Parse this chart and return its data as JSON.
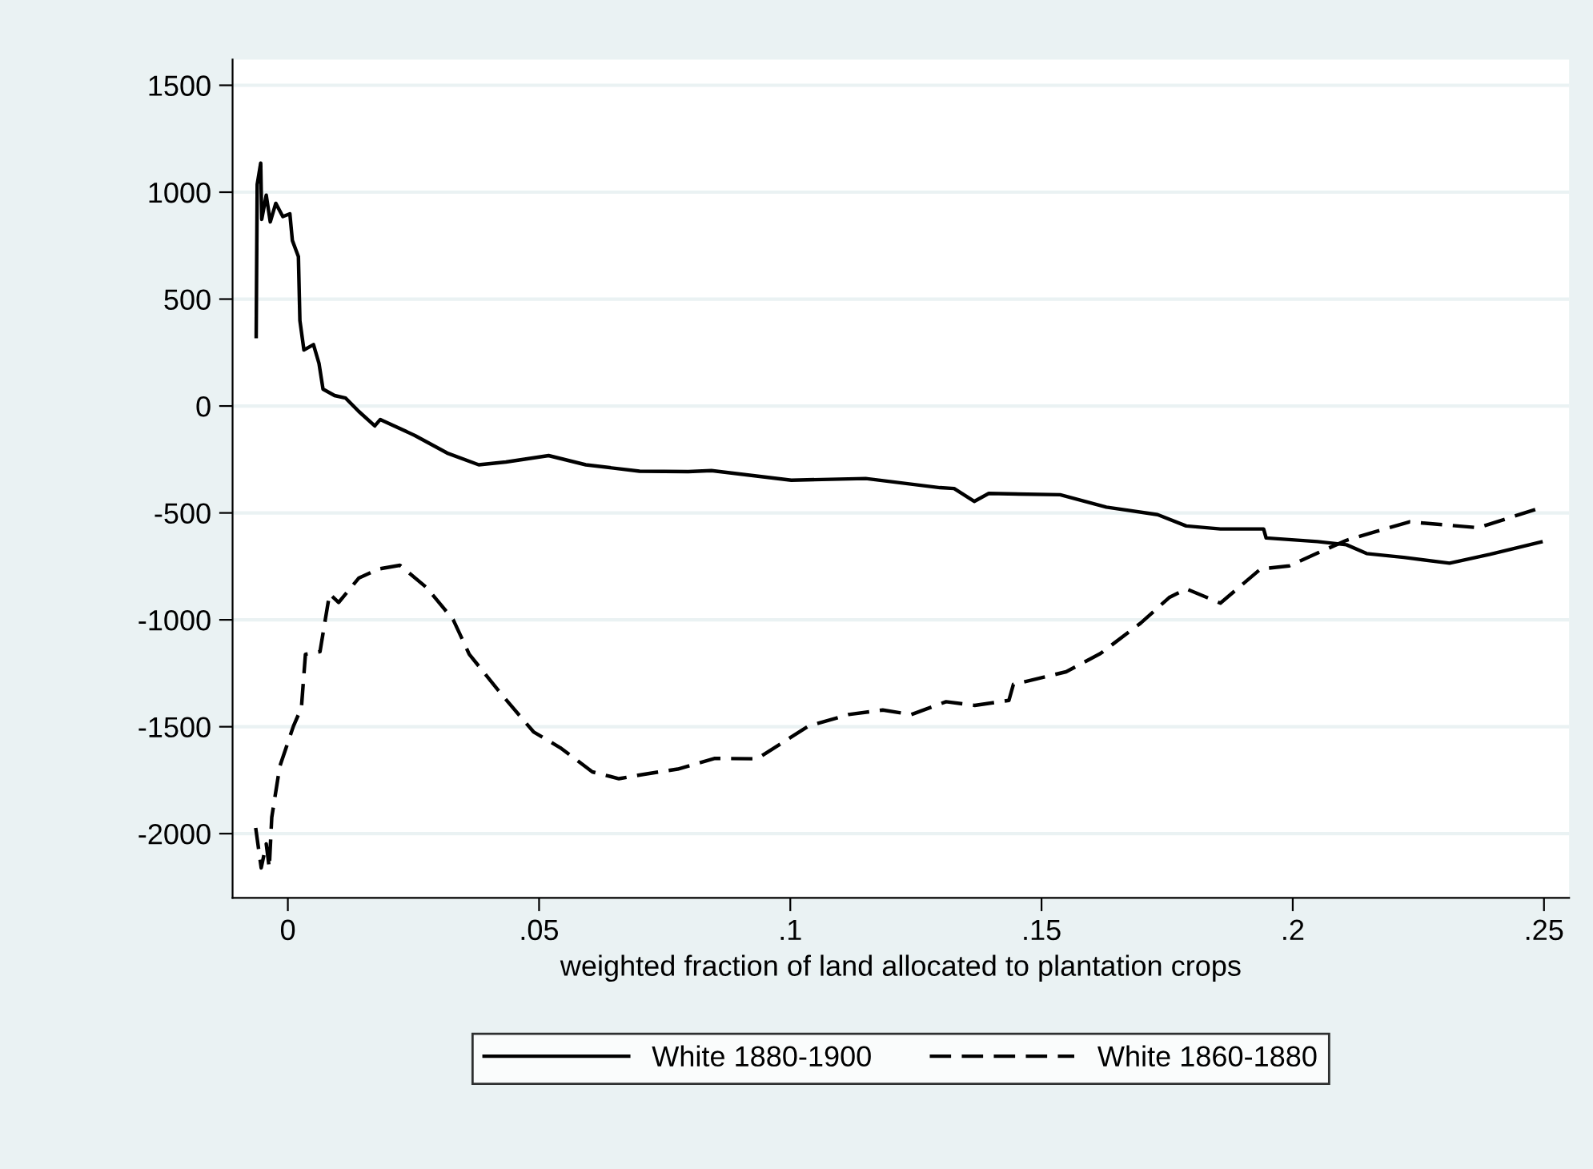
{
  "chart_data": {
    "type": "line",
    "xlabel": "weighted fraction of land allocated to plantation crops",
    "xlim": [
      -0.011,
      0.255
    ],
    "xticks": [
      {
        "value": 0,
        "label": "0"
      },
      {
        "value": 0.05,
        "label": ".05"
      },
      {
        "value": 0.1,
        "label": ".1"
      },
      {
        "value": 0.15,
        "label": ".15"
      },
      {
        "value": 0.2,
        "label": ".2"
      },
      {
        "value": 0.25,
        "label": ".25"
      }
    ],
    "ylim": [
      -2300,
      1620
    ],
    "yticks": [
      -2000,
      -1500,
      -1000,
      -500,
      0,
      500,
      1000,
      1500
    ],
    "grid": "y",
    "legend": "bottom",
    "series": [
      {
        "name": "White 1880-1900",
        "color": "#000000",
        "line_style": "solid",
        "x": [
          -0.0063,
          -0.0061,
          -0.0054,
          -0.0052,
          -0.0043,
          -0.0035,
          -0.0024,
          -0.001,
          0.0004,
          0.0009,
          0.0021,
          0.0024,
          0.0032,
          0.0051,
          0.0062,
          0.007,
          0.0093,
          0.0115,
          0.0141,
          0.0173,
          0.0184,
          0.0253,
          0.0317,
          0.038,
          0.0434,
          0.0519,
          0.0593,
          0.07,
          0.0797,
          0.0843,
          0.1002,
          0.115,
          0.1298,
          0.1326,
          0.1366,
          0.1395,
          0.1537,
          0.1629,
          0.1731,
          0.1788,
          0.1856,
          0.1942,
          0.1947,
          0.2049,
          0.2107,
          0.2147,
          0.2221,
          0.2312,
          0.2392,
          0.2494
        ],
        "values": [
          325,
          1036,
          1136,
          873,
          986,
          861,
          948,
          886,
          899,
          774,
          699,
          399,
          262,
          287,
          199,
          79,
          49,
          37,
          -25,
          -93,
          -63,
          -138,
          -220,
          -275,
          -262,
          -232,
          -275,
          -305,
          -307,
          -302,
          -347,
          -339,
          -382,
          -386,
          -446,
          -409,
          -415,
          -473,
          -508,
          -561,
          -575,
          -575,
          -617,
          -634,
          -649,
          -690,
          -708,
          -735,
          -694,
          -636
        ]
      },
      {
        "name": "White 1860-1880",
        "color": "#000000",
        "line_style": "dashed",
        "x": [
          -0.0064,
          -0.0053,
          -0.0043,
          -0.0037,
          -0.0032,
          -0.0016,
          0.0011,
          0.0027,
          0.0035,
          0.0064,
          0.0083,
          0.0101,
          0.0141,
          0.0181,
          0.0223,
          0.0276,
          0.0329,
          0.0361,
          0.0425,
          0.0489,
          0.0542,
          0.0606,
          0.0659,
          0.0707,
          0.0776,
          0.085,
          0.0934,
          0.1036,
          0.1116,
          0.1184,
          0.1241,
          0.131,
          0.1367,
          0.1435,
          0.1444,
          0.1549,
          0.1617,
          0.1697,
          0.1754,
          0.1788,
          0.1856,
          0.1936,
          0.1993,
          0.205,
          0.2107,
          0.2164,
          0.2232,
          0.2369,
          0.2494
        ],
        "values": [
          -1973,
          -2160,
          -2048,
          -2160,
          -1923,
          -1685,
          -1498,
          -1411,
          -1161,
          -1149,
          -879,
          -919,
          -805,
          -762,
          -745,
          -849,
          -999,
          -1161,
          -1348,
          -1524,
          -1598,
          -1711,
          -1743,
          -1723,
          -1698,
          -1648,
          -1650,
          -1497,
          -1443,
          -1422,
          -1443,
          -1383,
          -1400,
          -1377,
          -1302,
          -1243,
          -1158,
          -1016,
          -896,
          -855,
          -922,
          -762,
          -748,
          -687,
          -628,
          -588,
          -542,
          -569,
          -476
        ]
      }
    ]
  }
}
